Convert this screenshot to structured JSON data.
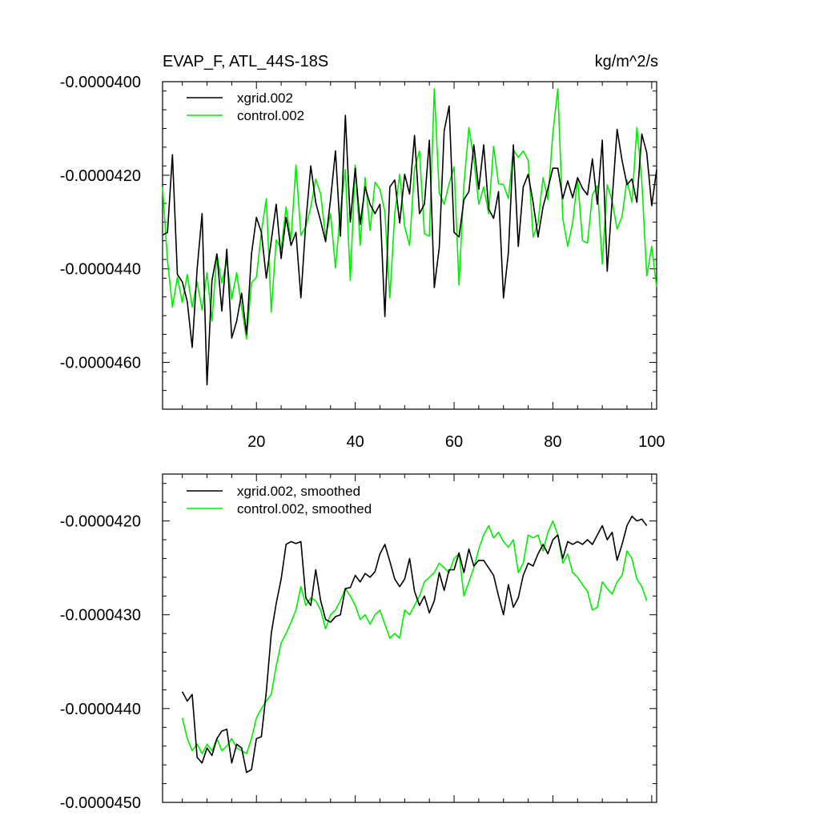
{
  "chart_data": [
    {
      "type": "line",
      "title": "EVAP_F, ATL_44S-18S",
      "units_label": "kg/m^2/s",
      "xlabel": "",
      "ylabel": "",
      "xlim": [
        1,
        101
      ],
      "ylim": [
        -4.7e-05,
        -4e-05
      ],
      "x_tick_values": [
        20,
        40,
        60,
        80,
        100
      ],
      "x_tick_labels": [
        "20",
        "40",
        "60",
        "80",
        "100"
      ],
      "y_tick_values": [
        -4e-05,
        -4.2e-05,
        -4.4e-05,
        -4.6e-05
      ],
      "y_tick_labels": [
        "-0.0000400",
        "-0.0000420",
        "-0.0000440",
        "-0.0000460"
      ],
      "legend_position": "top-left",
      "x_start": 1,
      "series": [
        {
          "name": "xgrid.002",
          "color": "#000000",
          "values": [
            -4.328e-05,
            -4.322e-05,
            -4.156e-05,
            -4.412e-05,
            -4.428e-05,
            -4.47e-05,
            -4.568e-05,
            -4.4e-05,
            -4.282e-05,
            -4.648e-05,
            -4.425e-05,
            -4.368e-05,
            -4.49e-05,
            -4.358e-05,
            -4.548e-05,
            -4.512e-05,
            -4.452e-05,
            -4.54e-05,
            -4.368e-05,
            -4.29e-05,
            -4.322e-05,
            -4.42e-05,
            -4.34e-05,
            -4.262e-05,
            -4.378e-05,
            -4.29e-05,
            -4.35e-05,
            -4.322e-05,
            -4.462e-05,
            -4.3e-05,
            -4.18e-05,
            -4.258e-05,
            -4.298e-05,
            -4.342e-05,
            -4.252e-05,
            -4.148e-05,
            -4.33e-05,
            -4.072e-05,
            -4.3e-05,
            -4.185e-05,
            -4.305e-05,
            -4.225e-05,
            -4.262e-05,
            -4.282e-05,
            -4.262e-05,
            -4.502e-05,
            -4.225e-05,
            -4.21e-05,
            -4.302e-05,
            -4.198e-05,
            -4.24e-05,
            -4.115e-05,
            -4.282e-05,
            -4.262e-05,
            -4.125e-05,
            -4.44e-05,
            -4.355e-05,
            -4.105e-05,
            -4.052e-05,
            -4.322e-05,
            -4.332e-05,
            -4.252e-05,
            -4.235e-05,
            -4.135e-05,
            -4.23e-05,
            -4.135e-05,
            -4.272e-05,
            -4.292e-05,
            -4.235e-05,
            -4.462e-05,
            -4.365e-05,
            -4.135e-05,
            -4.352e-05,
            -4.225e-05,
            -4.198e-05,
            -4.258e-05,
            -4.332e-05,
            -4.268e-05,
            -4.228e-05,
            -4.185e-05,
            -4.185e-05,
            -4.25e-05,
            -4.212e-05,
            -4.248e-05,
            -4.205e-05,
            -4.228e-05,
            -4.242e-05,
            -4.165e-05,
            -4.262e-05,
            -4.125e-05,
            -4.405e-05,
            -4.252e-05,
            -4.102e-05,
            -4.168e-05,
            -4.22e-05,
            -4.208e-05,
            -4.258e-05,
            -4.112e-05,
            -4.152e-05,
            -4.265e-05,
            -4.188e-05
          ]
        },
        {
          "name": "control.002",
          "color": "#00ee00",
          "values": [
            -4.225e-05,
            -4.382e-05,
            -4.482e-05,
            -4.418e-05,
            -4.472e-05,
            -4.412e-05,
            -4.482e-05,
            -4.428e-05,
            -4.488e-05,
            -4.408e-05,
            -4.512e-05,
            -4.368e-05,
            -4.43e-05,
            -4.382e-05,
            -4.465e-05,
            -4.408e-05,
            -4.482e-05,
            -4.55e-05,
            -4.43e-05,
            -4.418e-05,
            -4.322e-05,
            -4.25e-05,
            -4.492e-05,
            -4.338e-05,
            -4.358e-05,
            -4.268e-05,
            -4.338e-05,
            -4.178e-05,
            -4.328e-05,
            -4.31e-05,
            -4.268e-05,
            -4.208e-05,
            -4.24e-05,
            -4.332e-05,
            -4.282e-05,
            -4.398e-05,
            -4.275e-05,
            -4.188e-05,
            -4.425e-05,
            -4.178e-05,
            -4.35e-05,
            -4.205e-05,
            -4.318e-05,
            -4.215e-05,
            -4.23e-05,
            -4.278e-05,
            -4.462e-05,
            -4.282e-05,
            -4.198e-05,
            -4.31e-05,
            -4.35e-05,
            -4.185e-05,
            -4.148e-05,
            -4.325e-05,
            -4.33e-05,
            -4.015e-05,
            -4.238e-05,
            -4.262e-05,
            -4.218e-05,
            -4.182e-05,
            -4.435e-05,
            -4.22e-05,
            -4.098e-05,
            -4.165e-05,
            -4.262e-05,
            -4.225e-05,
            -4.282e-05,
            -4.138e-05,
            -4.218e-05,
            -4.22e-05,
            -4.25e-05,
            -4.145e-05,
            -4.162e-05,
            -4.148e-05,
            -4.168e-05,
            -4.332e-05,
            -4.302e-05,
            -4.205e-05,
            -4.252e-05,
            -4.11e-05,
            -4.015e-05,
            -4.292e-05,
            -4.352e-05,
            -4.302e-05,
            -4.208e-05,
            -4.34e-05,
            -4.345e-05,
            -4.242e-05,
            -4.222e-05,
            -4.39e-05,
            -4.22e-05,
            -4.255e-05,
            -4.315e-05,
            -4.288e-05,
            -4.21e-05,
            -4.258e-05,
            -4.098e-05,
            -4.212e-05,
            -4.415e-05,
            -4.352e-05,
            -4.44e-05
          ]
        }
      ]
    },
    {
      "type": "line",
      "title": "",
      "xlabel": "",
      "ylabel": "",
      "xlim": [
        1,
        101
      ],
      "ylim": [
        -4.5e-05,
        -4.15e-05
      ],
      "x_tick_values": [
        20,
        40,
        60,
        80,
        100
      ],
      "x_tick_labels": [],
      "y_tick_values": [
        -4.2e-05,
        -4.3e-05,
        -4.4e-05,
        -4.5e-05
      ],
      "y_tick_labels": [
        "-0.0000420",
        "-0.0000430",
        "-0.0000440",
        "-0.0000450"
      ],
      "legend_position": "top-left",
      "x_start": 5,
      "series": [
        {
          "name": "xgrid.002, smoothed",
          "color": "#000000",
          "values": [
            -4.382e-05,
            -4.392e-05,
            -4.385e-05,
            -4.452e-05,
            -4.458e-05,
            -4.442e-05,
            -4.45e-05,
            -4.432e-05,
            -4.424e-05,
            -4.422e-05,
            -4.458e-05,
            -4.438e-05,
            -4.442e-05,
            -4.468e-05,
            -4.465e-05,
            -4.432e-05,
            -4.43e-05,
            -4.382e-05,
            -4.32e-05,
            -4.288e-05,
            -4.262e-05,
            -4.225e-05,
            -4.222e-05,
            -4.224e-05,
            -4.222e-05,
            -4.282e-05,
            -4.29e-05,
            -4.252e-05,
            -4.285e-05,
            -4.305e-05,
            -4.308e-05,
            -4.302e-05,
            -4.3e-05,
            -4.272e-05,
            -4.271e-05,
            -4.258e-05,
            -4.265e-05,
            -4.256e-05,
            -4.26e-05,
            -4.254e-05,
            -4.235e-05,
            -4.225e-05,
            -4.243e-05,
            -4.262e-05,
            -4.27e-05,
            -4.262e-05,
            -4.24e-05,
            -4.275e-05,
            -4.29e-05,
            -4.28e-05,
            -4.298e-05,
            -4.285e-05,
            -4.255e-05,
            -4.274e-05,
            -4.252e-05,
            -4.252e-05,
            -4.234e-05,
            -4.255e-05,
            -4.23e-05,
            -4.248e-05,
            -4.242e-05,
            -4.242e-05,
            -4.25e-05,
            -4.258e-05,
            -4.28e-05,
            -4.3e-05,
            -4.268e-05,
            -4.292e-05,
            -4.282e-05,
            -4.258e-05,
            -4.245e-05,
            -4.248e-05,
            -4.235e-05,
            -4.225e-05,
            -4.235e-05,
            -4.22e-05,
            -4.215e-05,
            -4.24e-05,
            -4.222e-05,
            -4.225e-05,
            -4.222e-05,
            -4.225e-05,
            -4.22e-05,
            -4.225e-05,
            -4.215e-05,
            -4.205e-05,
            -4.22e-05,
            -4.212e-05,
            -4.242e-05,
            -4.225e-05,
            -4.205e-05,
            -4.195e-05,
            -4.2e-05,
            -4.198e-05,
            -4.205e-05
          ]
        },
        {
          "name": "control.002, smoothed",
          "color": "#00ee00",
          "values": [
            -4.41e-05,
            -4.432e-05,
            -4.445e-05,
            -4.438e-05,
            -4.448e-05,
            -4.438e-05,
            -4.445e-05,
            -4.432e-05,
            -4.445e-05,
            -4.44e-05,
            -4.432e-05,
            -4.442e-05,
            -4.445e-05,
            -4.448e-05,
            -4.432e-05,
            -4.41e-05,
            -4.4e-05,
            -4.392e-05,
            -4.385e-05,
            -4.355e-05,
            -4.33e-05,
            -4.32e-05,
            -4.308e-05,
            -4.295e-05,
            -4.27e-05,
            -4.29e-05,
            -4.282e-05,
            -4.285e-05,
            -4.295e-05,
            -4.315e-05,
            -4.3e-05,
            -4.295e-05,
            -4.285e-05,
            -4.272e-05,
            -4.28e-05,
            -4.29e-05,
            -4.305e-05,
            -4.3e-05,
            -4.31e-05,
            -4.3e-05,
            -4.295e-05,
            -4.31e-05,
            -4.325e-05,
            -4.32e-05,
            -4.325e-05,
            -4.295e-05,
            -4.3e-05,
            -4.29e-05,
            -4.28e-05,
            -4.265e-05,
            -4.26e-05,
            -4.255e-05,
            -4.245e-05,
            -4.25e-05,
            -4.255e-05,
            -4.24e-05,
            -4.235e-05,
            -4.28e-05,
            -4.265e-05,
            -4.25e-05,
            -4.23e-05,
            -4.215e-05,
            -4.205e-05,
            -4.218e-05,
            -4.212e-05,
            -4.222e-05,
            -4.228e-05,
            -4.22e-05,
            -4.255e-05,
            -4.245e-05,
            -4.215e-05,
            -4.218e-05,
            -4.215e-05,
            -4.232e-05,
            -4.212e-05,
            -4.2e-05,
            -4.215e-05,
            -4.245e-05,
            -4.235e-05,
            -4.255e-05,
            -4.26e-05,
            -4.268e-05,
            -4.275e-05,
            -4.295e-05,
            -4.292e-05,
            -4.265e-05,
            -4.272e-05,
            -4.278e-05,
            -4.265e-05,
            -4.258e-05,
            -4.232e-05,
            -4.24e-05,
            -4.262e-05,
            -4.27e-05,
            -4.285e-05
          ]
        }
      ]
    }
  ]
}
